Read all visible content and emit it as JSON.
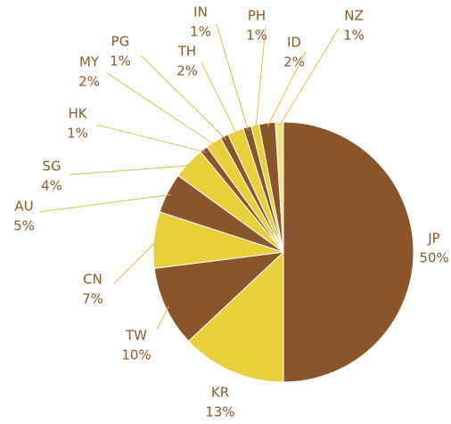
{
  "chart_data": {
    "type": "pie",
    "categories": [
      "JP",
      "KR",
      "TW",
      "CN",
      "AU",
      "SG",
      "HK",
      "MY",
      "PG",
      "TH",
      "IN",
      "PH",
      "ID",
      "NZ"
    ],
    "values": [
      50,
      13,
      10,
      7,
      5,
      4,
      1,
      2,
      1,
      2,
      1,
      1,
      2,
      1
    ],
    "value_labels": [
      "50%",
      "13%",
      "10%",
      "7%",
      "5%",
      "4%",
      "1%",
      "2%",
      "1%",
      "2%",
      "1%",
      "1%",
      "2%",
      "1%"
    ],
    "colors": [
      "#8b552c",
      "#e9d03a",
      "#8b552c",
      "#e9d03a",
      "#8b552c",
      "#e9d03a",
      "#8b552c",
      "#e9d03a",
      "#8b552c",
      "#e9d03a",
      "#8b552c",
      "#e9d03a",
      "#8b552c",
      "#f3e48a"
    ]
  }
}
